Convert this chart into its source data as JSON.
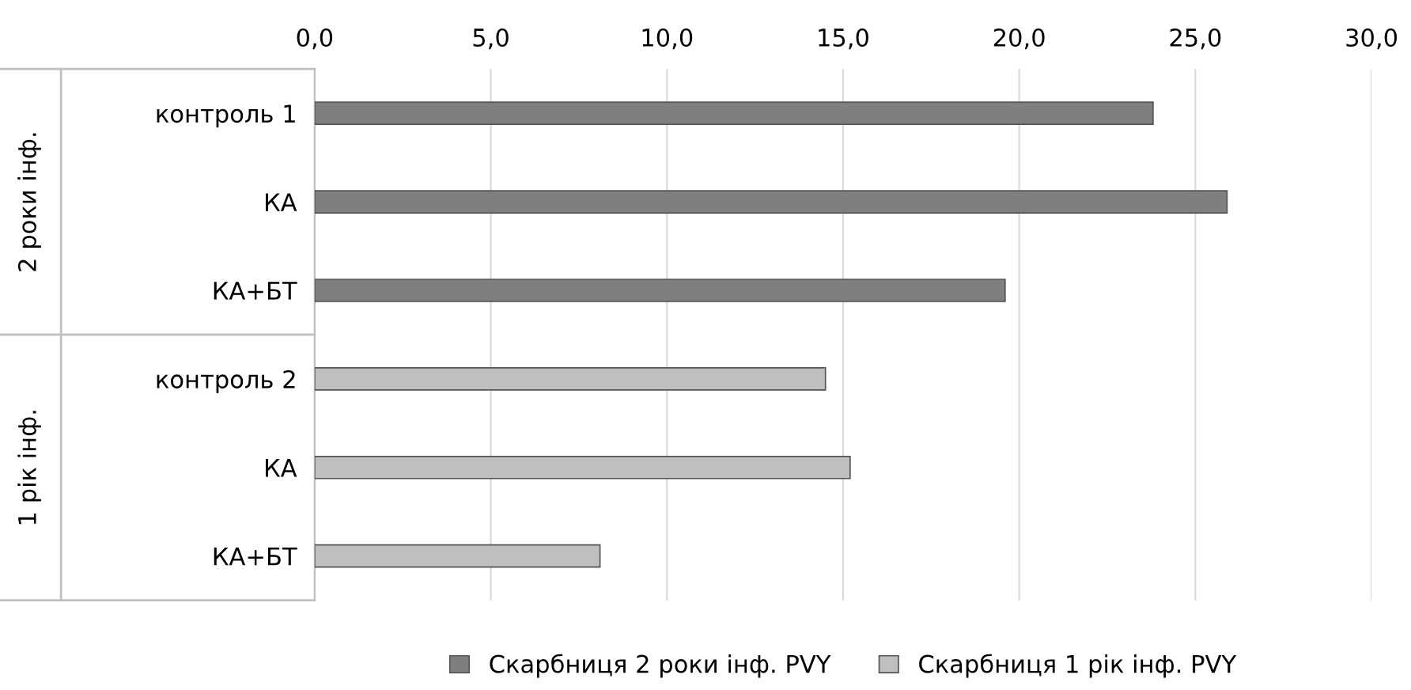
{
  "chart_data": {
    "type": "bar",
    "orientation": "horizontal",
    "categories": [
      "контроль 1",
      "КА",
      "КА+БТ",
      "контроль 2",
      "КА",
      "КА+БТ"
    ],
    "series": [
      {
        "name": "Скарбниця 2 роки інф. PVY",
        "color": "#7f7f7f",
        "values": [
          23.8,
          25.9,
          19.6,
          null,
          null,
          null
        ]
      },
      {
        "name": "Скарбниця 1 рік інф. PVY",
        "color": "#bfbfbf",
        "values": [
          null,
          null,
          null,
          14.5,
          15.2,
          8.1
        ]
      }
    ],
    "annotations": [
      "2 роки інф.",
      "1 рік інф."
    ],
    "xlim": [
      0,
      30
    ],
    "xticks": [
      {
        "value": 0,
        "label": "0,0"
      },
      {
        "value": 5,
        "label": "5,0"
      },
      {
        "value": 10,
        "label": "10,0"
      },
      {
        "value": 15,
        "label": "15,0"
      },
      {
        "value": 20,
        "label": "20,0"
      },
      {
        "value": 25,
        "label": "25,0"
      },
      {
        "value": 30,
        "label": "30,0"
      }
    ],
    "grid": "x",
    "legend": "bottom"
  }
}
